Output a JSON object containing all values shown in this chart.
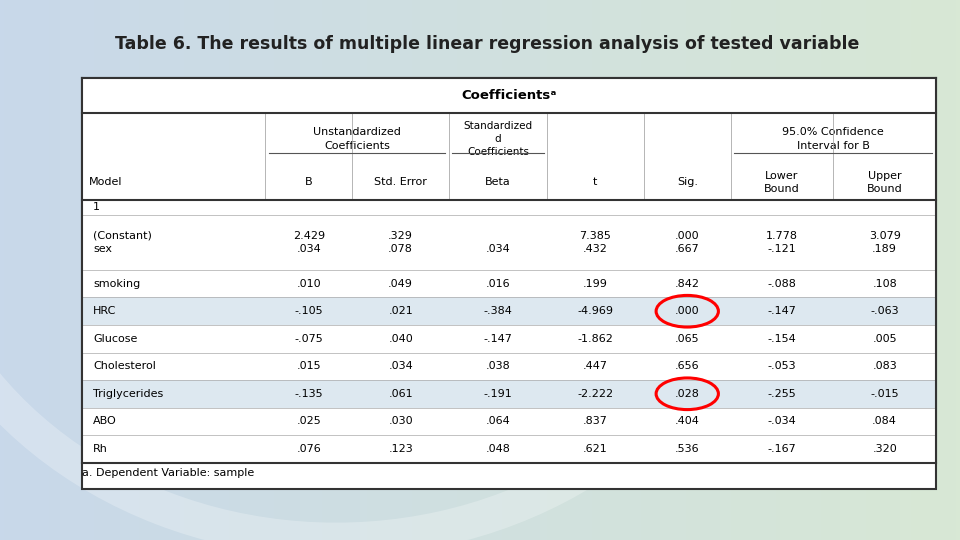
{
  "title": "Table 6. The results of multiple linear regression analysis of tested variable",
  "table_title": "Coefficientsᵃ",
  "footnote": "a. Dependent Variable: sample",
  "col_headers_bottom": [
    "Model",
    "B",
    "Std. Error",
    "Beta",
    "t",
    "Sig.",
    "Lower\nBound",
    "Upper\nBound"
  ],
  "rows": [
    [
      "1",
      "",
      "",
      "",
      "",
      "",
      "",
      ""
    ],
    [
      "(Constant)\nsex",
      "2.429\n.034",
      ".329\n.078",
      "\n.034",
      "7.385\n.432",
      ".000\n.667",
      "1.778\n-.121",
      "3.079\n.189"
    ],
    [
      "smoking",
      ".010",
      ".049",
      ".016",
      ".199",
      ".842",
      "-.088",
      ".108"
    ],
    [
      "HRC",
      "-.105",
      ".021",
      "-.384",
      "-4.969",
      ".000",
      "-.147",
      "-.063"
    ],
    [
      "Glucose",
      "-.075",
      ".040",
      "-.147",
      "-1.862",
      ".065",
      "-.154",
      ".005"
    ],
    [
      "Cholesterol",
      ".015",
      ".034",
      ".038",
      ".447",
      ".656",
      "-.053",
      ".083"
    ],
    [
      "Triglycerides",
      "-.135",
      ".061",
      "-.191",
      "-2.222",
      ".028",
      "-.255",
      "-.015"
    ],
    [
      "ABO",
      ".025",
      ".030",
      ".064",
      ".837",
      ".404",
      "-.034",
      ".084"
    ],
    [
      "Rh",
      ".076",
      ".123",
      ".048",
      ".621",
      ".536",
      "-.167",
      ".320"
    ]
  ],
  "row_heights_rel": [
    0.5,
    2.0,
    1.0,
    1.0,
    1.0,
    1.0,
    1.0,
    1.0,
    1.0
  ],
  "highlighted_rows": [
    3,
    6
  ],
  "circle_cells": [
    [
      3,
      5
    ],
    [
      6,
      5
    ]
  ],
  "bg_color_left": "#c5d5e8",
  "bg_color_right": "#d5e5d0",
  "table_bg": "#ffffff",
  "highlight_color": "#dde8f0",
  "border_color": "#333333",
  "text_color": "#000000",
  "title_color": "#222222",
  "col_widths_rel": [
    1.7,
    0.8,
    0.9,
    0.9,
    0.9,
    0.8,
    0.95,
    0.95
  ]
}
